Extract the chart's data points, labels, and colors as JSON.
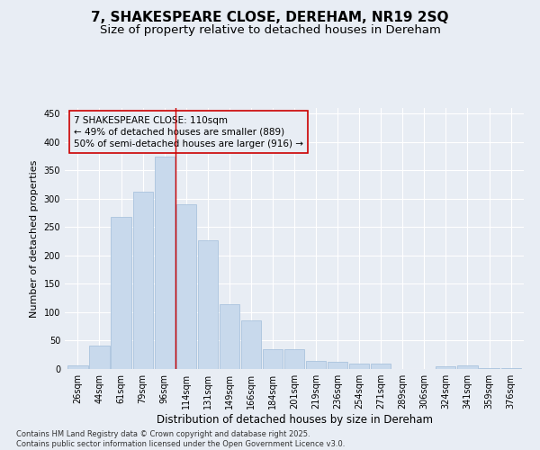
{
  "title": "7, SHAKESPEARE CLOSE, DEREHAM, NR19 2SQ",
  "subtitle": "Size of property relative to detached houses in Dereham",
  "xlabel": "Distribution of detached houses by size in Dereham",
  "ylabel": "Number of detached properties",
  "categories": [
    "26sqm",
    "44sqm",
    "61sqm",
    "79sqm",
    "96sqm",
    "114sqm",
    "131sqm",
    "149sqm",
    "166sqm",
    "184sqm",
    "201sqm",
    "219sqm",
    "236sqm",
    "254sqm",
    "271sqm",
    "289sqm",
    "306sqm",
    "324sqm",
    "341sqm",
    "359sqm",
    "376sqm"
  ],
  "values": [
    7,
    42,
    268,
    312,
    375,
    290,
    227,
    115,
    85,
    35,
    35,
    15,
    12,
    10,
    10,
    0,
    0,
    5,
    6,
    2,
    2
  ],
  "bar_color": "#c8d9ec",
  "bar_edge_color": "#aac4de",
  "background_color": "#e8edf4",
  "grid_color": "#ffffff",
  "annotation_box_color": "#cc0000",
  "annotation_text": "7 SHAKESPEARE CLOSE: 110sqm\n← 49% of detached houses are smaller (889)\n50% of semi-detached houses are larger (916) →",
  "vline_x": 4.5,
  "vline_color": "#cc0000",
  "ylim": [
    0,
    460
  ],
  "yticks": [
    0,
    50,
    100,
    150,
    200,
    250,
    300,
    350,
    400,
    450
  ],
  "footnote": "Contains HM Land Registry data © Crown copyright and database right 2025.\nContains public sector information licensed under the Open Government Licence v3.0.",
  "title_fontsize": 11,
  "subtitle_fontsize": 9.5,
  "xlabel_fontsize": 8.5,
  "ylabel_fontsize": 8,
  "tick_fontsize": 7,
  "annotation_fontsize": 7.5,
  "footnote_fontsize": 6
}
